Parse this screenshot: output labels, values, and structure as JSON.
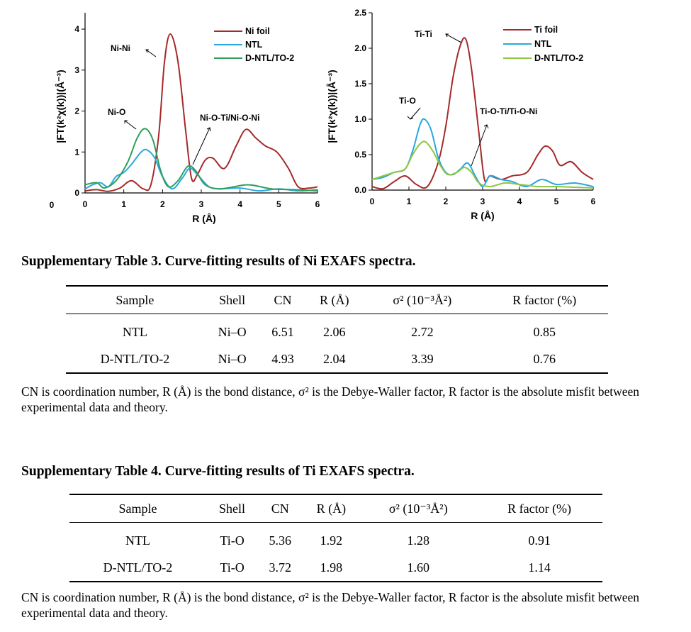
{
  "chart_data": [
    {
      "type": "line",
      "xlabel": "R (Å)",
      "ylabel": "|FT(k²χ(k))|(Å⁻³)",
      "xlim": [
        0,
        6
      ],
      "ylim": [
        0,
        4.4
      ],
      "x_ticks": [
        "0",
        "1",
        "2",
        "3",
        "4",
        "5",
        "6"
      ],
      "y_ticks": [
        "0",
        "1",
        "2",
        "3",
        "4"
      ],
      "extra_label": "0",
      "grid": false,
      "legend_position": "top-right",
      "series": [
        {
          "name": "Ni foil",
          "color": "#a52a2a",
          "points": [
            [
              0,
              0.05
            ],
            [
              0.3,
              0.08
            ],
            [
              0.6,
              0.04
            ],
            [
              0.9,
              0.12
            ],
            [
              1.2,
              0.3
            ],
            [
              1.5,
              0.1
            ],
            [
              1.7,
              0.2
            ],
            [
              1.9,
              1.4
            ],
            [
              2.05,
              3.2
            ],
            [
              2.2,
              3.88
            ],
            [
              2.4,
              3.2
            ],
            [
              2.6,
              1.5
            ],
            [
              2.75,
              0.35
            ],
            [
              2.9,
              0.45
            ],
            [
              3.1,
              0.8
            ],
            [
              3.3,
              0.85
            ],
            [
              3.6,
              0.6
            ],
            [
              3.9,
              1.15
            ],
            [
              4.15,
              1.55
            ],
            [
              4.4,
              1.35
            ],
            [
              4.65,
              1.15
            ],
            [
              4.95,
              1.0
            ],
            [
              5.25,
              0.6
            ],
            [
              5.5,
              0.15
            ],
            [
              5.8,
              0.12
            ],
            [
              6,
              0.15
            ]
          ]
        },
        {
          "name": "NTL",
          "color": "#29a8e0",
          "points": [
            [
              0,
              0.1
            ],
            [
              0.2,
              0.2
            ],
            [
              0.4,
              0.25
            ],
            [
              0.6,
              0.15
            ],
            [
              0.8,
              0.4
            ],
            [
              1.0,
              0.5
            ],
            [
              1.2,
              0.7
            ],
            [
              1.45,
              1.0
            ],
            [
              1.6,
              1.05
            ],
            [
              1.8,
              0.85
            ],
            [
              2.0,
              0.4
            ],
            [
              2.25,
              0.1
            ],
            [
              2.5,
              0.35
            ],
            [
              2.7,
              0.6
            ],
            [
              2.9,
              0.45
            ],
            [
              3.2,
              0.15
            ],
            [
              3.5,
              0.1
            ],
            [
              4.0,
              0.12
            ],
            [
              4.5,
              0.05
            ],
            [
              5.0,
              0.1
            ],
            [
              5.5,
              0.05
            ],
            [
              6,
              0.08
            ]
          ]
        },
        {
          "name": "D-NTL/TO-2",
          "color": "#2e9e5a",
          "points": [
            [
              0,
              0.2
            ],
            [
              0.3,
              0.25
            ],
            [
              0.5,
              0.12
            ],
            [
              0.8,
              0.3
            ],
            [
              1.1,
              0.75
            ],
            [
              1.35,
              1.35
            ],
            [
              1.55,
              1.57
            ],
            [
              1.75,
              1.3
            ],
            [
              1.95,
              0.55
            ],
            [
              2.15,
              0.15
            ],
            [
              2.4,
              0.3
            ],
            [
              2.65,
              0.65
            ],
            [
              2.85,
              0.55
            ],
            [
              3.1,
              0.2
            ],
            [
              3.5,
              0.1
            ],
            [
              4.2,
              0.2
            ],
            [
              4.8,
              0.1
            ],
            [
              5.4,
              0.08
            ],
            [
              6,
              0.05
            ]
          ]
        }
      ],
      "annotations": [
        "Ni-Ni",
        "Ni-O",
        "Ni-O-Ti/Ni-O-Ni"
      ]
    },
    {
      "type": "line",
      "xlabel": "R (Å)",
      "ylabel": "|FT(k²χ(k))|(Å⁻³)",
      "xlim": [
        0,
        6
      ],
      "ylim": [
        0,
        2.5
      ],
      "x_ticks": [
        "0",
        "1",
        "2",
        "3",
        "4",
        "5",
        "6"
      ],
      "y_ticks": [
        "0.0",
        "0.5",
        "1.0",
        "1.5",
        "2.0",
        "2.5"
      ],
      "grid": false,
      "legend_position": "top-right",
      "series": [
        {
          "name": "Ti foil",
          "color": "#a52a2a",
          "points": [
            [
              0,
              0.05
            ],
            [
              0.3,
              0.02
            ],
            [
              0.6,
              0.12
            ],
            [
              0.9,
              0.2
            ],
            [
              1.2,
              0.08
            ],
            [
              1.5,
              0.05
            ],
            [
              1.8,
              0.4
            ],
            [
              2.0,
              0.9
            ],
            [
              2.2,
              1.6
            ],
            [
              2.4,
              2.05
            ],
            [
              2.55,
              2.12
            ],
            [
              2.7,
              1.7
            ],
            [
              2.9,
              0.8
            ],
            [
              3.05,
              0.15
            ],
            [
              3.2,
              0.2
            ],
            [
              3.5,
              0.15
            ],
            [
              3.8,
              0.2
            ],
            [
              4.2,
              0.25
            ],
            [
              4.5,
              0.5
            ],
            [
              4.7,
              0.62
            ],
            [
              4.9,
              0.55
            ],
            [
              5.1,
              0.35
            ],
            [
              5.4,
              0.4
            ],
            [
              5.7,
              0.25
            ],
            [
              6,
              0.15
            ]
          ]
        },
        {
          "name": "NTL",
          "color": "#29a8e0",
          "points": [
            [
              0,
              0.15
            ],
            [
              0.3,
              0.18
            ],
            [
              0.6,
              0.25
            ],
            [
              0.9,
              0.3
            ],
            [
              1.1,
              0.55
            ],
            [
              1.3,
              0.92
            ],
            [
              1.42,
              1.0
            ],
            [
              1.6,
              0.85
            ],
            [
              1.8,
              0.45
            ],
            [
              2.0,
              0.25
            ],
            [
              2.2,
              0.22
            ],
            [
              2.4,
              0.3
            ],
            [
              2.6,
              0.38
            ],
            [
              2.8,
              0.2
            ],
            [
              3.0,
              0.05
            ],
            [
              3.2,
              0.2
            ],
            [
              3.5,
              0.15
            ],
            [
              3.8,
              0.12
            ],
            [
              4.2,
              0.05
            ],
            [
              4.6,
              0.15
            ],
            [
              5.0,
              0.08
            ],
            [
              5.5,
              0.1
            ],
            [
              6,
              0.05
            ]
          ]
        },
        {
          "name": "D-NTL/TO-2",
          "color": "#8dc63f",
          "points": [
            [
              0,
              0.15
            ],
            [
              0.3,
              0.2
            ],
            [
              0.6,
              0.25
            ],
            [
              0.9,
              0.3
            ],
            [
              1.1,
              0.5
            ],
            [
              1.3,
              0.65
            ],
            [
              1.45,
              0.68
            ],
            [
              1.65,
              0.55
            ],
            [
              1.85,
              0.35
            ],
            [
              2.05,
              0.22
            ],
            [
              2.3,
              0.25
            ],
            [
              2.5,
              0.32
            ],
            [
              2.7,
              0.25
            ],
            [
              2.9,
              0.1
            ],
            [
              3.2,
              0.05
            ],
            [
              3.6,
              0.1
            ],
            [
              4.0,
              0.08
            ],
            [
              4.5,
              0.05
            ],
            [
              5.0,
              0.05
            ],
            [
              5.5,
              0.04
            ],
            [
              6,
              0.03
            ]
          ]
        }
      ],
      "annotations": [
        "Ti-Ti",
        "Ti-O",
        "Ti-O-Ti/Ti-O-Ni"
      ]
    }
  ],
  "table3": {
    "caption": "Supplementary Table 3. Curve-fitting results of Ni EXAFS spectra.",
    "headers": [
      "Sample",
      "Shell",
      "CN",
      "R (Å)",
      "σ² (10⁻³Å²)",
      "R factor (%)"
    ],
    "rows": [
      [
        "NTL",
        "Ni–O",
        "6.51",
        "2.06",
        "2.72",
        "0.85"
      ],
      [
        "D-NTL/TO-2",
        "Ni–O",
        "4.93",
        "2.04",
        "3.39",
        "0.76"
      ]
    ],
    "note": "CN is coordination number, R (Å) is the bond distance, σ² is the Debye-Waller factor, R factor is the absolute misfit between experimental data and theory."
  },
  "table4": {
    "caption": "Supplementary Table 4. Curve-fitting results of Ti EXAFS spectra.",
    "headers": [
      "Sample",
      "Shell",
      "CN",
      "R (Å)",
      "σ² (10⁻³Å²)",
      "R factor (%)"
    ],
    "rows": [
      [
        "NTL",
        "Ti-O",
        "5.36",
        "1.92",
        "1.28",
        "0.91"
      ],
      [
        "D-NTL/TO-2",
        "Ti-O",
        "3.72",
        "1.98",
        "1.60",
        "1.14"
      ]
    ],
    "note": "CN is coordination number, R (Å) is the bond distance, σ² is the Debye-Waller factor, R factor is the absolute misfit between experimental data and theory."
  }
}
